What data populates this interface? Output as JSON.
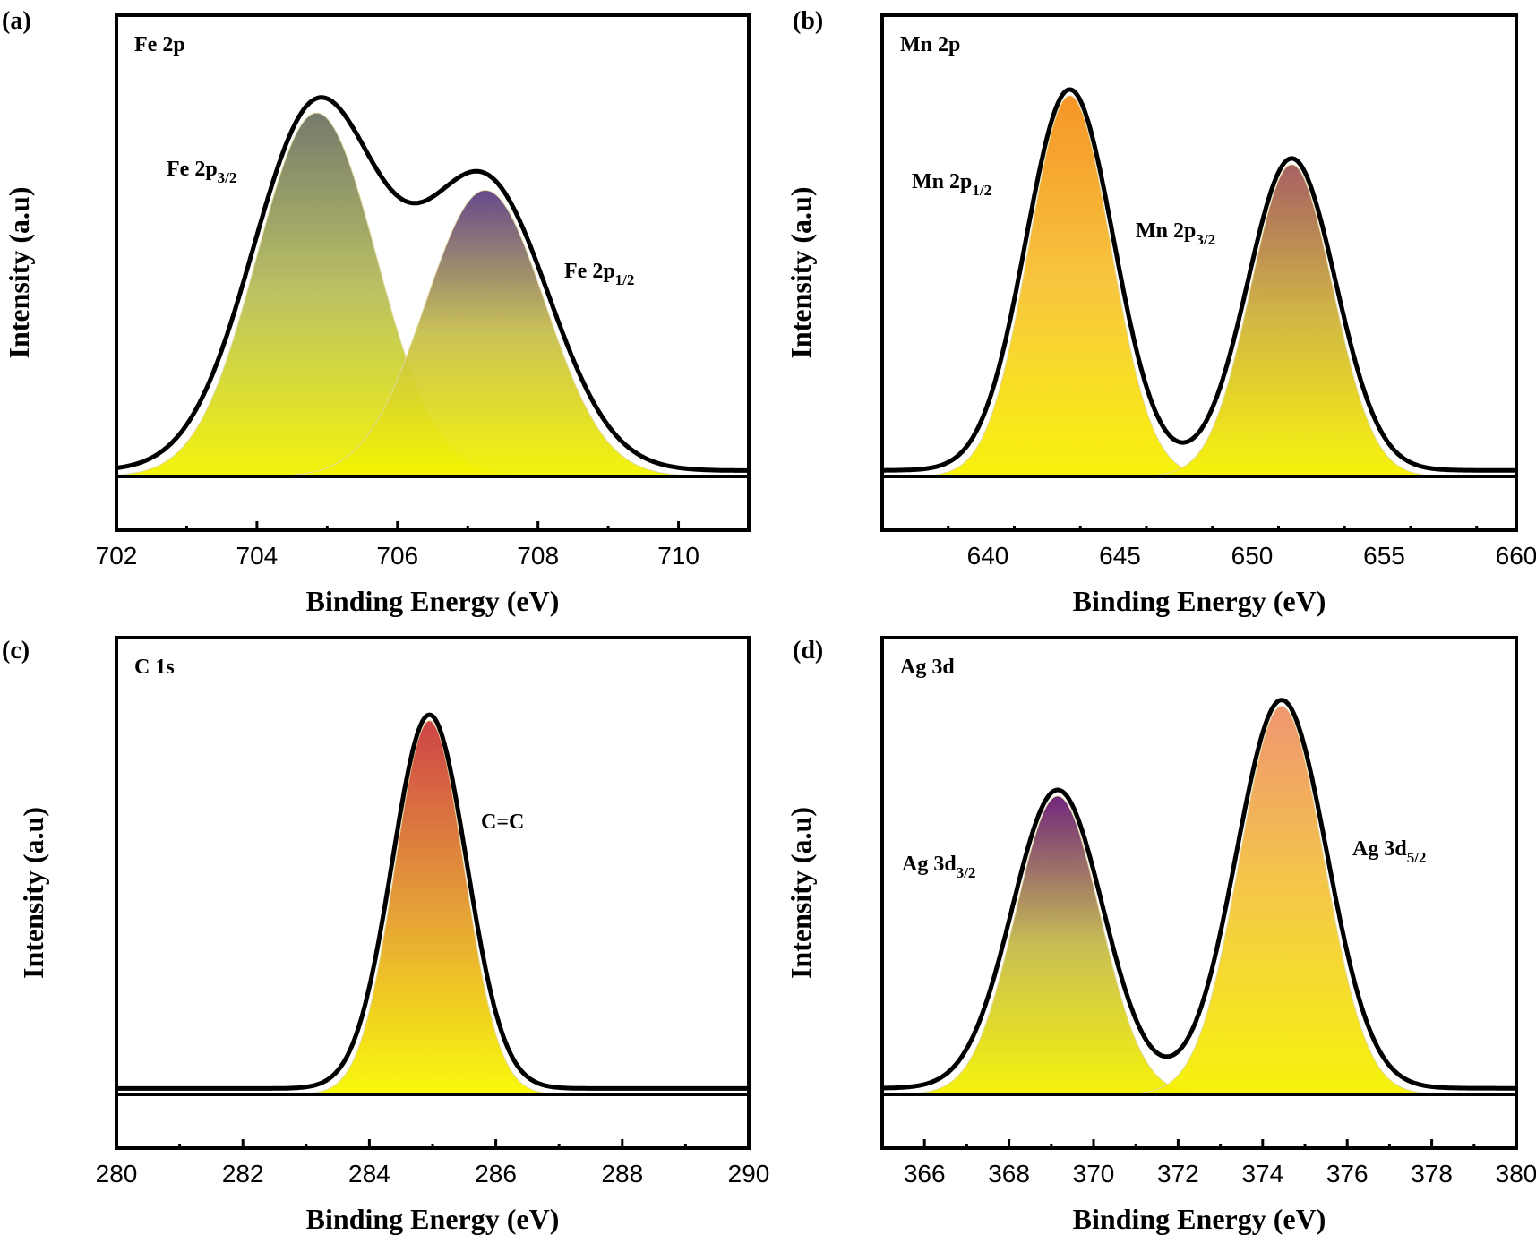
{
  "chart_data": [
    {
      "panel": "(a)",
      "type": "area",
      "title": "Fe 2p",
      "xlabel": "Binding Energy (eV)",
      "ylabel": "Intensity (a.u)",
      "xlim": [
        702,
        711
      ],
      "xticks": [
        702,
        704,
        706,
        708,
        710
      ],
      "ylim": [
        0,
        1.1
      ],
      "baseline": 0,
      "peaks": [
        {
          "label_main": "Fe 2p",
          "label_sub": "3/2",
          "center": 704.85,
          "height": 0.94,
          "sigma": 0.85,
          "colors": [
            "#6f7466",
            "#b9c05a",
            "#f4f400"
          ]
        },
        {
          "label_main": "Fe 2p",
          "label_sub": "1/2",
          "center": 707.25,
          "height": 0.74,
          "sigma": 0.85,
          "colors": [
            "#5f3f86",
            "#c8c04e",
            "#f4f400"
          ]
        }
      ]
    },
    {
      "panel": "(b)",
      "type": "area",
      "title": "Mn 2p",
      "xlabel": "Binding Energy (eV)",
      "ylabel": "Intensity (a.u)",
      "xlim": [
        636,
        660
      ],
      "xticks": [
        640,
        645,
        650,
        655,
        660
      ],
      "ylim": [
        0,
        1.05
      ],
      "baseline": 0,
      "peaks": [
        {
          "label_main": "Mn 2p",
          "label_sub": "1/2",
          "center": 643.1,
          "height": 0.94,
          "sigma": 1.55,
          "colors": [
            "#f5901c",
            "#f8c435",
            "#f8f300"
          ]
        },
        {
          "label_main": "Mn 2p",
          "label_sub": "3/2",
          "center": 651.5,
          "height": 0.77,
          "sigma": 1.55,
          "colors": [
            "#a2585c",
            "#d0b53a",
            "#f8f300"
          ]
        }
      ]
    },
    {
      "panel": "(c)",
      "type": "area",
      "title": "C 1s",
      "xlabel": "Binding Energy (eV)",
      "ylabel": "Intensity (a.u)",
      "xlim": [
        280,
        290
      ],
      "xticks": [
        280,
        282,
        284,
        286,
        288,
        290
      ],
      "ylim": [
        0,
        1.07
      ],
      "baseline": 0,
      "peaks": [
        {
          "label_main": "C=C",
          "label_sub": "",
          "center": 284.95,
          "height": 0.95,
          "sigma": 0.55,
          "colors": [
            "#cc3a3e",
            "#e49a2e",
            "#fafa00"
          ]
        }
      ]
    },
    {
      "panel": "(d)",
      "type": "area",
      "title": "Ag 3d",
      "xlabel": "Binding Energy (eV)",
      "ylabel": "Intensity (a.u)",
      "xlim": [
        365,
        380
      ],
      "xticks": [
        366,
        368,
        370,
        372,
        374,
        376,
        378,
        380
      ],
      "ylim": [
        0,
        1.03
      ],
      "baseline": 0,
      "peaks": [
        {
          "label_main": "Ag 3d",
          "label_sub": "3/2",
          "center": 369.15,
          "height": 0.73,
          "sigma": 1.0,
          "colors": [
            "#6a1c76",
            "#c6bb4c",
            "#f6f300"
          ]
        },
        {
          "label_main": "Ag 3d",
          "label_sub": "5/2",
          "center": 374.45,
          "height": 0.95,
          "sigma": 1.0,
          "colors": [
            "#f0906a",
            "#f4c83c",
            "#f6f300"
          ]
        }
      ]
    }
  ]
}
